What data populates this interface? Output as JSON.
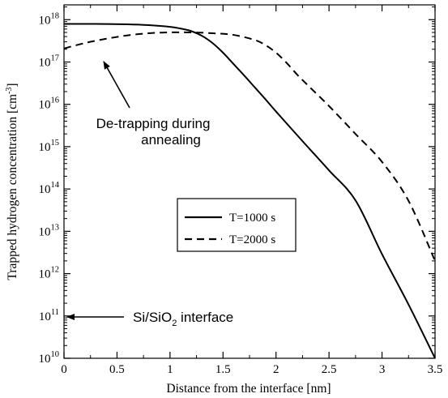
{
  "chart_data": {
    "type": "line",
    "xlabel": "Distance from the interface [nm]",
    "ylabel": "Trapped hydrogen concentration [cm",
    "ylabel_sup": "-3",
    "ylabel_end": "]",
    "xlim": [
      0,
      3.5
    ],
    "ylim_log10": [
      10,
      18.35
    ],
    "y_scale": "log",
    "grid": false,
    "x_ticks": [
      0,
      0.5,
      1,
      1.5,
      2,
      2.5,
      3,
      3.5
    ],
    "x_tick_labels": [
      "0",
      "0.5",
      "1",
      "1.5",
      "2",
      "2.5",
      "3",
      "3.5"
    ],
    "y_tick_exponents": [
      10,
      11,
      12,
      13,
      14,
      15,
      16,
      17,
      18
    ],
    "y_tick_base": "10",
    "series": [
      {
        "name": "T=1000 s",
        "style": "solid",
        "x": [
          0,
          0.3,
          0.6,
          0.8,
          1.0,
          1.1,
          1.2,
          1.3,
          1.4,
          1.5,
          1.6,
          1.7,
          1.8,
          1.9,
          2.0,
          2.25,
          2.5,
          2.75,
          3.0,
          3.25,
          3.5
        ],
        "y_log10": [
          17.9,
          17.9,
          17.89,
          17.87,
          17.83,
          17.79,
          17.73,
          17.62,
          17.45,
          17.22,
          16.95,
          16.68,
          16.4,
          16.12,
          15.83,
          15.13,
          14.44,
          13.73,
          12.46,
          11.27,
          10.0
        ]
      },
      {
        "name": "T=2000 s",
        "style": "dashed",
        "x": [
          0,
          0.2,
          0.4,
          0.6,
          0.8,
          1.0,
          1.2,
          1.4,
          1.6,
          1.8,
          1.9,
          2.0,
          2.1,
          2.2,
          2.3,
          2.5,
          2.75,
          3.0,
          3.25,
          3.5
        ],
        "y_log10": [
          17.32,
          17.45,
          17.55,
          17.63,
          17.68,
          17.7,
          17.7,
          17.68,
          17.64,
          17.52,
          17.4,
          17.22,
          16.98,
          16.7,
          16.45,
          15.96,
          15.3,
          14.64,
          13.72,
          12.3
        ]
      }
    ],
    "legend": {
      "position": "center-right",
      "entries": [
        "T=1000 s",
        "T=2000 s"
      ]
    },
    "annotations": [
      {
        "text": "De-trapping during",
        "text2": "annealing",
        "arrow_to": {
          "x": 0.38,
          "y_log10": 17.55
        }
      },
      {
        "text": "Si/SiO",
        "sub": "2",
        "text_end": " interface",
        "arrow_to": {
          "x": 0.02,
          "y_log10": 11.07
        }
      }
    ]
  }
}
